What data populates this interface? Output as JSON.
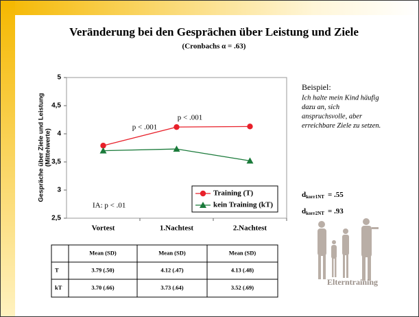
{
  "chart_data": {
    "type": "line",
    "title": "Veränderung  bei den Gesprächen über Leistung und Ziele",
    "subtitle": "(Cronbachs α = .63)",
    "y_label": [
      "Gespräche über Ziele und Leistung",
      "(Mittelwerte)"
    ],
    "categories": [
      "Vortest",
      "1.Nachtest",
      "2.Nachtest"
    ],
    "series": [
      {
        "name": "Training (T)",
        "color": "#e8202a",
        "marker": "circle",
        "values": [
          3.79,
          4.12,
          4.13
        ]
      },
      {
        "name": "kein Training (kT)",
        "color": "#1a7a3a",
        "marker": "triangle",
        "values": [
          3.7,
          3.73,
          3.52
        ]
      }
    ],
    "ylim": [
      2.5,
      5
    ],
    "yticks": [
      {
        "value": 2.5,
        "label": "2,5"
      },
      3,
      {
        "value": 3.5,
        "label": "3,5"
      },
      4,
      {
        "value": 4.5,
        "label": "4,5"
      },
      5
    ],
    "legend": "lower right",
    "annotations": [
      "p < .001",
      "p < .001",
      "IA: p < .01"
    ]
  },
  "table": {
    "header": [
      "",
      "Mean (SD)",
      "Mean (SD)",
      "Mean (SD)"
    ],
    "rows": [
      [
        "T",
        "3.79  (.50)",
        "4.12 (.47)",
        "4.13  (.48)"
      ],
      [
        "kT",
        "3.70 (.66)",
        "3.73 (.64)",
        "3.52 (.69)"
      ]
    ]
  },
  "side_note": {
    "heading": "Beispiel:",
    "lines": [
      "Ich halte mein Kind häufig",
      "dazu an, sich",
      "anspruchsvolle, aber",
      "erreichbare Ziele zu setzen."
    ]
  },
  "effects": [
    {
      "symbol": "d",
      "subscript": "korr1NT",
      "text": "= .55"
    },
    {
      "symbol": "d",
      "subscript": "korr2NT",
      "text": "= .93"
    }
  ],
  "image_caption": "Elterntraining"
}
